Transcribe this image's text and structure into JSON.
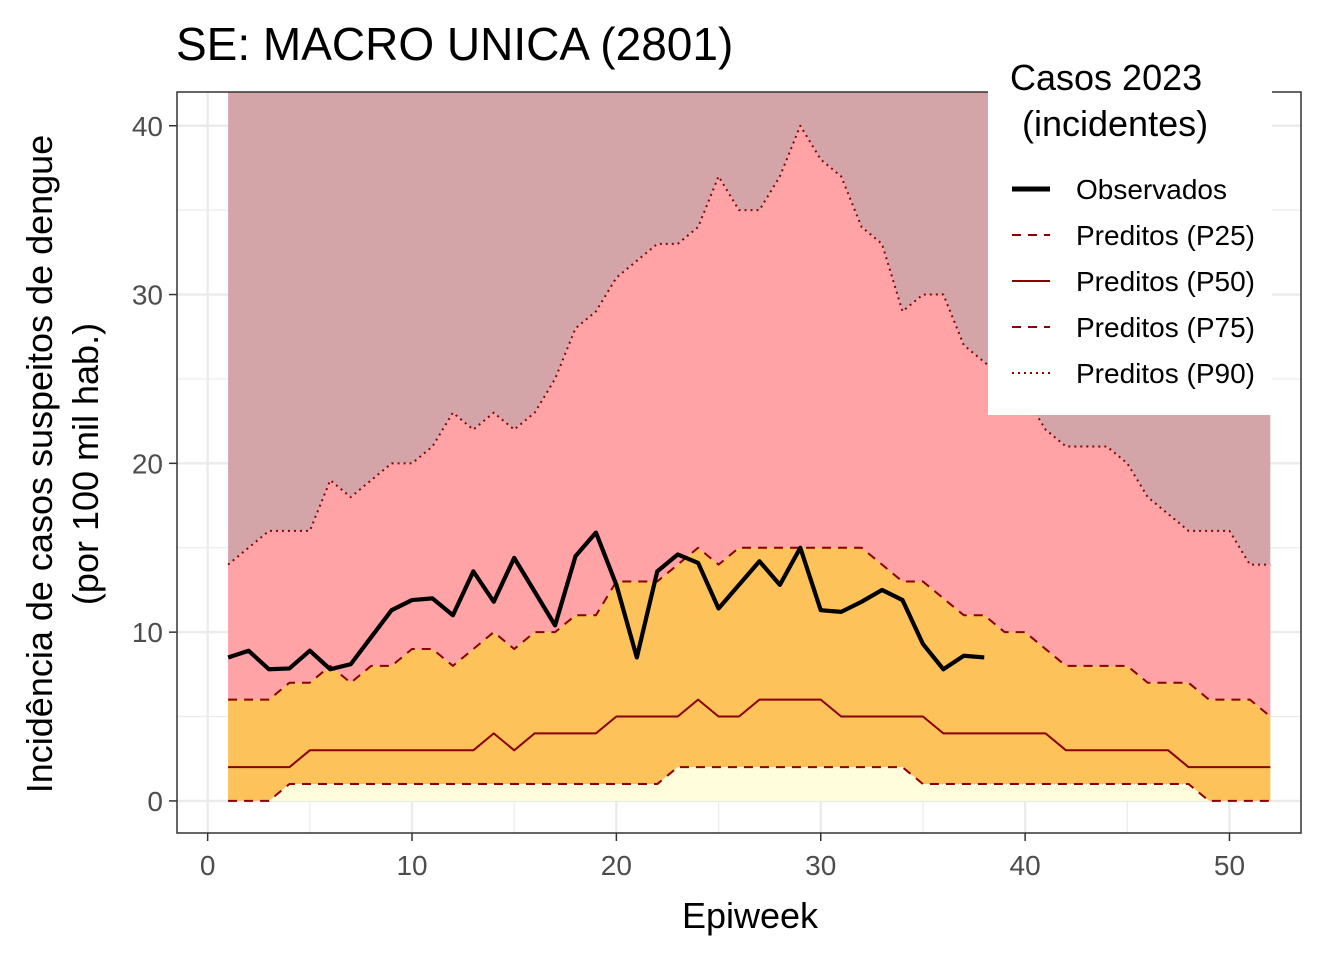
{
  "chart_data": {
    "type": "line",
    "title": "SE: MACRO UNICA (2801)",
    "xlabel": "Epiweek",
    "ylabel_line1": "Incidência de casos suspeitos de dengue",
    "ylabel_line2": "(por 100 mil hab.)",
    "xlim": [
      -1.5,
      53.5
    ],
    "ylim": [
      -1.9,
      42
    ],
    "x_ticks": [
      0,
      10,
      20,
      30,
      40,
      50
    ],
    "y_ticks": [
      0,
      10,
      20,
      30,
      40
    ],
    "grid": true,
    "legend": {
      "title_line1": "Casos 2023",
      "title_line2": "(incidentes)",
      "placement": "top-right",
      "entries": [
        {
          "key": "observed",
          "label": "Observados"
        },
        {
          "key": "p25",
          "label": "Preditos (P25)"
        },
        {
          "key": "p50",
          "label": "Preditos (P50)"
        },
        {
          "key": "p75",
          "label": "Preditos (P75)"
        },
        {
          "key": "p90",
          "label": "Preditos (P90)"
        }
      ]
    },
    "colors": {
      "observed": "#000000",
      "predicted": "#8b0000",
      "band_top": "#d4a5a8",
      "band_p75_p90": "#ffa3a6",
      "band_p25_p75": "#fdc25a",
      "band_0_p25": "#fffddb",
      "grid": "#ebebeb",
      "axis": "#333333"
    },
    "x": [
      1,
      2,
      3,
      4,
      5,
      6,
      7,
      8,
      9,
      10,
      11,
      12,
      13,
      14,
      15,
      16,
      17,
      18,
      19,
      20,
      21,
      22,
      23,
      24,
      25,
      26,
      27,
      28,
      29,
      30,
      31,
      32,
      33,
      34,
      35,
      36,
      37,
      38,
      39,
      40,
      41,
      42,
      43,
      44,
      45,
      46,
      47,
      48,
      49,
      50,
      51,
      52
    ],
    "series": [
      {
        "name": "Preditos (P25)",
        "key": "p25",
        "values": [
          0,
          0,
          0,
          1,
          1,
          1,
          1,
          1,
          1,
          1,
          1,
          1,
          1,
          1,
          1,
          1,
          1,
          1,
          1,
          1,
          1,
          1,
          2,
          2,
          2,
          2,
          2,
          2,
          2,
          2,
          2,
          2,
          2,
          2,
          1,
          1,
          1,
          1,
          1,
          1,
          1,
          1,
          1,
          1,
          1,
          1,
          1,
          1,
          0,
          0,
          0,
          0
        ]
      },
      {
        "name": "Preditos (P50)",
        "key": "p50",
        "values": [
          2,
          2,
          2,
          2,
          3,
          3,
          3,
          3,
          3,
          3,
          3,
          3,
          3,
          4,
          3,
          4,
          4,
          4,
          4,
          5,
          5,
          5,
          5,
          6,
          5,
          5,
          6,
          6,
          6,
          6,
          5,
          5,
          5,
          5,
          5,
          4,
          4,
          4,
          4,
          4,
          4,
          3,
          3,
          3,
          3,
          3,
          3,
          2,
          2,
          2,
          2,
          2
        ]
      },
      {
        "name": "Preditos (P75)",
        "key": "p75",
        "values": [
          6,
          6,
          6,
          7,
          7,
          8,
          7,
          8,
          8,
          9,
          9,
          8,
          9,
          10,
          9,
          10,
          10,
          11,
          11,
          13,
          13,
          13,
          14,
          15,
          14,
          15,
          15,
          15,
          15,
          15,
          15,
          15,
          14,
          13,
          13,
          12,
          11,
          11,
          10,
          10,
          9,
          8,
          8,
          8,
          8,
          7,
          7,
          7,
          6,
          6,
          6,
          5
        ]
      },
      {
        "name": "Preditos (P90)",
        "key": "p90",
        "values": [
          14,
          15,
          16,
          16,
          16,
          19,
          18,
          19,
          20,
          20,
          21,
          23,
          22,
          23,
          22,
          23,
          25,
          28,
          29,
          31,
          32,
          33,
          33,
          34,
          37,
          35,
          35,
          37,
          40,
          38,
          37,
          34,
          33,
          29,
          30,
          30,
          27,
          26,
          25,
          24,
          22,
          21,
          21,
          21,
          20,
          18,
          17,
          16,
          16,
          16,
          14,
          14
        ]
      },
      {
        "name": "Observados",
        "key": "observed",
        "x": [
          1,
          2,
          3,
          4,
          5,
          6,
          7,
          8,
          9,
          10,
          11,
          12,
          13,
          14,
          15,
          16,
          17,
          18,
          19,
          20,
          21,
          22,
          23,
          24,
          25,
          26,
          27,
          28,
          29,
          30,
          31,
          32,
          33,
          34,
          35,
          36,
          37,
          38
        ],
        "values": [
          8.5,
          8.9,
          7.8,
          7.85,
          8.9,
          7.8,
          8.1,
          9.7,
          11.3,
          11.9,
          12.0,
          11.0,
          13.6,
          11.8,
          14.4,
          12.4,
          10.4,
          14.5,
          15.9,
          12.8,
          8.5,
          13.6,
          14.6,
          14.1,
          11.4,
          12.8,
          14.2,
          12.8,
          15.0,
          11.3,
          11.2,
          11.8,
          12.5,
          11.9,
          9.3,
          7.8,
          8.6,
          8.5
        ]
      }
    ]
  }
}
